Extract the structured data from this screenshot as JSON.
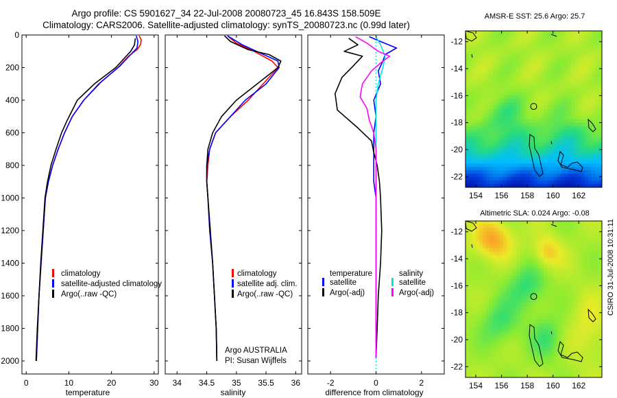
{
  "header": {
    "title_line1": "Argo profile: CS 5901627_34 22-Jul-2008 20080723_45 16.843S 158.509E",
    "title_line2": "Climatology: CARS2006. Satellite-adjusted climatology: synTS_20080723.nc (0.99d later)"
  },
  "footer": {
    "stamp": "CSIRO 31-Jul-2008 10:31:11"
  },
  "colors": {
    "climatology": "#ff0000",
    "satellite": "#0000ff",
    "argo": "#000000",
    "sal_satellite": "#00e6e6",
    "sal_argo": "#ff00ff"
  },
  "chart_data": [
    {
      "type": "line",
      "xlabel": "temperature",
      "ylabel": "",
      "xlim": [
        -1,
        31
      ],
      "ylim": [
        2080,
        0
      ],
      "x_ticks": [
        0,
        10,
        20,
        30
      ],
      "y_ticks": [
        0,
        200,
        400,
        600,
        800,
        1000,
        1200,
        1400,
        1600,
        1800,
        2000
      ],
      "legend": [
        "climatology",
        "satellite-adjusted climatology",
        "Argo(..raw -QC)"
      ],
      "series": [
        {
          "name": "climatology",
          "color": "#ff0000",
          "points": [
            [
              26.5,
              5
            ],
            [
              27,
              30
            ],
            [
              26.8,
              60
            ],
            [
              26,
              90
            ],
            [
              24,
              130
            ],
            [
              21.5,
              200
            ],
            [
              17,
              300
            ],
            [
              13.5,
              400
            ],
            [
              10.8,
              500
            ],
            [
              9,
              600
            ],
            [
              7.5,
              700
            ],
            [
              6.2,
              800
            ],
            [
              5.2,
              900
            ],
            [
              4.5,
              1000
            ],
            [
              4,
              1200
            ],
            [
              3.5,
              1400
            ],
            [
              3,
              1600
            ],
            [
              2.7,
              1800
            ],
            [
              2.4,
              2000
            ]
          ]
        },
        {
          "name": "satellite-adjusted climatology",
          "color": "#0000ff",
          "points": [
            [
              25.8,
              5
            ],
            [
              26.2,
              40
            ],
            [
              26,
              80
            ],
            [
              24.5,
              120
            ],
            [
              22,
              190
            ],
            [
              17.5,
              290
            ],
            [
              13.5,
              400
            ],
            [
              10.8,
              500
            ],
            [
              9,
              600
            ],
            [
              7.5,
              700
            ],
            [
              6.2,
              800
            ],
            [
              5.2,
              900
            ],
            [
              4.5,
              1000
            ],
            [
              4,
              1200
            ],
            [
              3.5,
              1400
            ],
            [
              3,
              1600
            ],
            [
              2.7,
              1800
            ],
            [
              2.4,
              2000
            ]
          ]
        },
        {
          "name": "Argo(..raw -QC)",
          "color": "#000000",
          "points": [
            [
              25.6,
              20
            ],
            [
              25.4,
              60
            ],
            [
              24.5,
              100
            ],
            [
              21,
              200
            ],
            [
              16,
              300
            ],
            [
              12,
              400
            ],
            [
              9.5,
              530
            ],
            [
              8.3,
              600
            ],
            [
              7,
              700
            ],
            [
              5.8,
              800
            ],
            [
              5,
              900
            ],
            [
              4.4,
              1000
            ],
            [
              3.9,
              1200
            ],
            [
              3.4,
              1400
            ],
            [
              3,
              1600
            ],
            [
              2.6,
              1800
            ],
            [
              2.3,
              2000
            ]
          ]
        }
      ]
    },
    {
      "type": "line",
      "xlabel": "salinity",
      "ylabel": "",
      "xlim": [
        33.8,
        36.1
      ],
      "ylim": [
        2080,
        0
      ],
      "x_ticks": [
        34,
        34.5,
        35,
        35.5,
        36
      ],
      "legend": [
        "climatology",
        "satellite adj. clim.",
        "Argo(..raw -QC)"
      ],
      "annotation": [
        "Argo AUSTRALIA",
        "PI: Susan Wijffels"
      ],
      "series": [
        {
          "name": "climatology",
          "color": "#ff0000",
          "points": [
            [
              34.85,
              5
            ],
            [
              35,
              50
            ],
            [
              35.3,
              100
            ],
            [
              35.6,
              160
            ],
            [
              35.7,
              200
            ],
            [
              35.5,
              280
            ],
            [
              35.2,
              400
            ],
            [
              34.9,
              500
            ],
            [
              34.65,
              600
            ],
            [
              34.55,
              700
            ],
            [
              34.52,
              800
            ],
            [
              34.5,
              900
            ],
            [
              34.52,
              1000
            ],
            [
              34.55,
              1200
            ],
            [
              34.6,
              1400
            ],
            [
              34.63,
              1600
            ],
            [
              34.66,
              1800
            ],
            [
              34.67,
              2000
            ]
          ]
        },
        {
          "name": "satellite adj. clim.",
          "color": "#0000ff",
          "points": [
            [
              34.85,
              5
            ],
            [
              35.1,
              60
            ],
            [
              35.4,
              110
            ],
            [
              35.7,
              160
            ],
            [
              35.72,
              200
            ],
            [
              35.5,
              300
            ],
            [
              35.15,
              400
            ],
            [
              34.9,
              500
            ],
            [
              34.65,
              600
            ],
            [
              34.55,
              700
            ],
            [
              34.5,
              800
            ],
            [
              34.5,
              900
            ],
            [
              34.52,
              1000
            ],
            [
              34.55,
              1200
            ],
            [
              34.6,
              1400
            ],
            [
              34.63,
              1600
            ],
            [
              34.66,
              1800
            ],
            [
              34.67,
              2000
            ]
          ]
        },
        {
          "name": "Argo(..raw -QC)",
          "color": "#000000",
          "points": [
            [
              34.8,
              5
            ],
            [
              34.9,
              40
            ],
            [
              35.2,
              90
            ],
            [
              35.55,
              120
            ],
            [
              35.75,
              160
            ],
            [
              35.7,
              200
            ],
            [
              35.35,
              300
            ],
            [
              35,
              400
            ],
            [
              34.75,
              500
            ],
            [
              34.6,
              600
            ],
            [
              34.52,
              700
            ],
            [
              34.5,
              800
            ],
            [
              34.5,
              900
            ],
            [
              34.52,
              1000
            ],
            [
              34.56,
              1200
            ],
            [
              34.6,
              1400
            ],
            [
              34.63,
              1600
            ],
            [
              34.66,
              1800
            ],
            [
              34.67,
              2000
            ]
          ]
        }
      ]
    },
    {
      "type": "line",
      "xlabel": "difference from climatology",
      "ylabel": "",
      "xlim": [
        -3,
        3
      ],
      "ylim": [
        2080,
        0
      ],
      "x_ticks": [
        -2,
        0,
        2
      ],
      "legend_temperature": [
        "temperature",
        "satellite",
        "Argo(-adj)"
      ],
      "legend_salinity": [
        "salinity",
        "satellite",
        "Argo(-adj)"
      ],
      "series": [
        {
          "name": "temperature satellite",
          "color": "#0000ff",
          "points": [
            [
              -0.3,
              10
            ],
            [
              0.2,
              40
            ],
            [
              0.9,
              80
            ],
            [
              0.4,
              120
            ],
            [
              0.3,
              160
            ],
            [
              0.1,
              220
            ],
            [
              0.2,
              300
            ],
            [
              -0.1,
              400
            ],
            [
              0,
              500
            ],
            [
              -0.1,
              600
            ],
            [
              -0.1,
              700
            ],
            [
              -0.1,
              800
            ],
            [
              -0.1,
              900
            ],
            [
              0,
              1000
            ],
            [
              0,
              1200
            ],
            [
              0,
              1400
            ],
            [
              0,
              1600
            ],
            [
              0,
              1800
            ],
            [
              0,
              1980
            ]
          ]
        },
        {
          "name": "temperature Argo(-adj)",
          "color": "#000000",
          "points": [
            [
              -1.2,
              20
            ],
            [
              -0.8,
              60
            ],
            [
              -1.4,
              100
            ],
            [
              -0.6,
              130
            ],
            [
              -1,
              190
            ],
            [
              -1.5,
              260
            ],
            [
              -1.8,
              360
            ],
            [
              -1.7,
              460
            ],
            [
              -0.8,
              570
            ],
            [
              -0.2,
              650
            ],
            [
              -0.1,
              720
            ],
            [
              0.05,
              800
            ],
            [
              0.15,
              900
            ],
            [
              0.2,
              1000
            ],
            [
              0.25,
              1200
            ],
            [
              0.2,
              1400
            ],
            [
              0.1,
              1600
            ],
            [
              0.05,
              1800
            ],
            [
              0,
              1980
            ]
          ]
        },
        {
          "name": "salinity satellite",
          "color": "#00e6e6",
          "points": [
            [
              0,
              10
            ],
            [
              0.2,
              60
            ],
            [
              0.4,
              130
            ],
            [
              0.3,
              200
            ],
            [
              0.1,
              300
            ],
            [
              0,
              400
            ],
            [
              0,
              500
            ],
            [
              0,
              600
            ],
            [
              0,
              800
            ],
            [
              0,
              1000
            ],
            [
              0,
              1200
            ],
            [
              0,
              1400
            ],
            [
              0,
              1600
            ],
            [
              0,
              1800
            ],
            [
              0,
              1980
            ]
          ]
        },
        {
          "name": "salinity Argo(-adj)",
          "color": "#ff00ff",
          "points": [
            [
              -0.9,
              10
            ],
            [
              -0.4,
              50
            ],
            [
              0.1,
              100
            ],
            [
              0.6,
              130
            ],
            [
              0.3,
              160
            ],
            [
              -0.2,
              220
            ],
            [
              -0.6,
              300
            ],
            [
              -0.7,
              380
            ],
            [
              -0.4,
              450
            ],
            [
              -0.3,
              520
            ],
            [
              -0.1,
              600
            ],
            [
              0,
              700
            ],
            [
              0,
              800
            ],
            [
              0,
              1000
            ],
            [
              0,
              1200
            ],
            [
              0,
              1400
            ],
            [
              0,
              1600
            ],
            [
              0,
              1800
            ],
            [
              0,
              1980
            ]
          ]
        }
      ]
    },
    {
      "type": "heatmap",
      "title": "AMSR-E SST: 25.6 Argo: 25.7",
      "xlim": [
        153.2,
        163.8
      ],
      "ylim": [
        -22.8,
        -11.2
      ],
      "x_ticks": [
        154,
        156,
        158,
        160,
        162
      ],
      "y_ticks": [
        -12,
        -14,
        -16,
        -18,
        -20,
        -22
      ],
      "marker": [
        158.5,
        -16.8
      ]
    },
    {
      "type": "heatmap",
      "title": "Altimetric SLA: 0.024 Argo: -0.08",
      "xlim": [
        153.2,
        163.8
      ],
      "ylim": [
        -22.8,
        -11.2
      ],
      "x_ticks": [
        154,
        156,
        158,
        160,
        162
      ],
      "y_ticks": [
        -12,
        -14,
        -16,
        -18,
        -20,
        -22
      ],
      "marker": [
        158.5,
        -16.8
      ]
    }
  ]
}
